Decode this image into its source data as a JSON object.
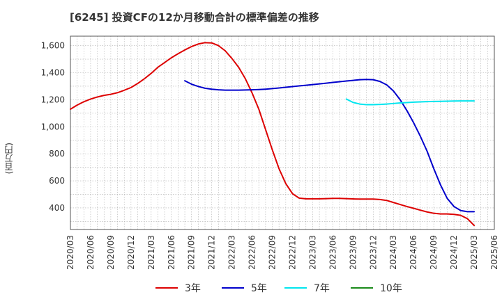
{
  "chart_data": {
    "type": "line",
    "title": "[6245]  投資CFの12か月移動合計の標準偏差の推移",
    "ylabel": "(百万円)",
    "xlabel": "",
    "ylim": [
      240,
      1670
    ],
    "yticks": [
      400,
      600,
      800,
      1000,
      1200,
      1400,
      1600
    ],
    "ytick_labels": [
      "400",
      "600",
      "800",
      "1,000",
      "1,200",
      "1,400",
      "1,600"
    ],
    "xticks": [
      "2020/03",
      "2020/06",
      "2020/09",
      "2020/12",
      "2021/03",
      "2021/06",
      "2021/09",
      "2021/12",
      "2022/03",
      "2022/06",
      "2022/09",
      "2022/12",
      "2023/03",
      "2023/06",
      "2023/09",
      "2023/12",
      "2024/03",
      "2024/06",
      "2024/09",
      "2024/12",
      "2025/03",
      "2025/06"
    ],
    "grid": true,
    "legend_position": "bottom",
    "series": [
      {
        "name": "3年",
        "color": "#dd0000",
        "x": [
          "2020/03",
          "2020/04",
          "2020/05",
          "2020/06",
          "2020/07",
          "2020/08",
          "2020/09",
          "2020/10",
          "2020/11",
          "2020/12",
          "2021/01",
          "2021/02",
          "2021/03",
          "2021/04",
          "2021/05",
          "2021/06",
          "2021/07",
          "2021/08",
          "2021/09",
          "2021/10",
          "2021/11",
          "2021/12",
          "2022/01",
          "2022/02",
          "2022/03",
          "2022/04",
          "2022/05",
          "2022/06",
          "2022/07",
          "2022/08",
          "2022/09",
          "2022/10",
          "2022/11",
          "2022/12",
          "2023/01",
          "2023/02",
          "2023/03",
          "2023/04",
          "2023/05",
          "2023/06",
          "2023/07",
          "2023/08",
          "2023/09",
          "2023/10",
          "2023/11",
          "2023/12",
          "2024/01",
          "2024/02",
          "2024/03",
          "2024/04",
          "2024/05",
          "2024/06",
          "2024/07",
          "2024/08",
          "2024/09",
          "2024/10",
          "2024/11",
          "2024/12",
          "2025/01",
          "2025/02",
          "2025/03"
        ],
        "values": [
          1130,
          1160,
          1185,
          1205,
          1220,
          1232,
          1240,
          1252,
          1270,
          1290,
          1320,
          1355,
          1395,
          1440,
          1475,
          1510,
          1540,
          1568,
          1593,
          1612,
          1622,
          1620,
          1600,
          1562,
          1505,
          1440,
          1355,
          1250,
          1130,
          980,
          830,
          690,
          580,
          505,
          472,
          467,
          467,
          467,
          468,
          470,
          470,
          468,
          466,
          465,
          465,
          465,
          462,
          455,
          440,
          425,
          410,
          397,
          383,
          370,
          360,
          355,
          355,
          352,
          345,
          320,
          270
        ]
      },
      {
        "name": "5年",
        "color": "#0000cc",
        "x": [
          "2021/08",
          "2021/09",
          "2021/10",
          "2021/11",
          "2021/12",
          "2022/01",
          "2022/02",
          "2022/03",
          "2022/04",
          "2022/05",
          "2022/06",
          "2022/07",
          "2022/08",
          "2022/09",
          "2022/10",
          "2022/11",
          "2022/12",
          "2023/01",
          "2023/02",
          "2023/03",
          "2023/04",
          "2023/05",
          "2023/06",
          "2023/07",
          "2023/08",
          "2023/09",
          "2023/10",
          "2023/11",
          "2023/12",
          "2024/01",
          "2024/02",
          "2024/03",
          "2024/04",
          "2024/05",
          "2024/06",
          "2024/07",
          "2024/08",
          "2024/09",
          "2024/10",
          "2024/11",
          "2024/12",
          "2025/01",
          "2025/02",
          "2025/03"
        ],
        "values": [
          1340,
          1315,
          1298,
          1285,
          1278,
          1273,
          1271,
          1271,
          1271,
          1272,
          1273,
          1275,
          1278,
          1282,
          1287,
          1292,
          1297,
          1302,
          1307,
          1312,
          1317,
          1322,
          1328,
          1333,
          1338,
          1343,
          1348,
          1350,
          1348,
          1335,
          1310,
          1265,
          1200,
          1120,
          1030,
          930,
          820,
          690,
          570,
          470,
          410,
          380,
          372,
          372
        ]
      },
      {
        "name": "7年",
        "color": "#00e5ee",
        "x": [
          "2023/08",
          "2023/09",
          "2023/10",
          "2023/11",
          "2023/12",
          "2024/01",
          "2024/02",
          "2024/03",
          "2024/04",
          "2024/05",
          "2024/06",
          "2024/07",
          "2024/08",
          "2024/09",
          "2024/10",
          "2024/11",
          "2024/12",
          "2025/01",
          "2025/02",
          "2025/03"
        ],
        "values": [
          1205,
          1180,
          1168,
          1163,
          1163,
          1165,
          1168,
          1172,
          1176,
          1179,
          1182,
          1184,
          1186,
          1187,
          1188,
          1189,
          1190,
          1191,
          1191,
          1191
        ]
      },
      {
        "name": "10年",
        "color": "#1a8a1a",
        "x": [],
        "values": []
      }
    ]
  }
}
